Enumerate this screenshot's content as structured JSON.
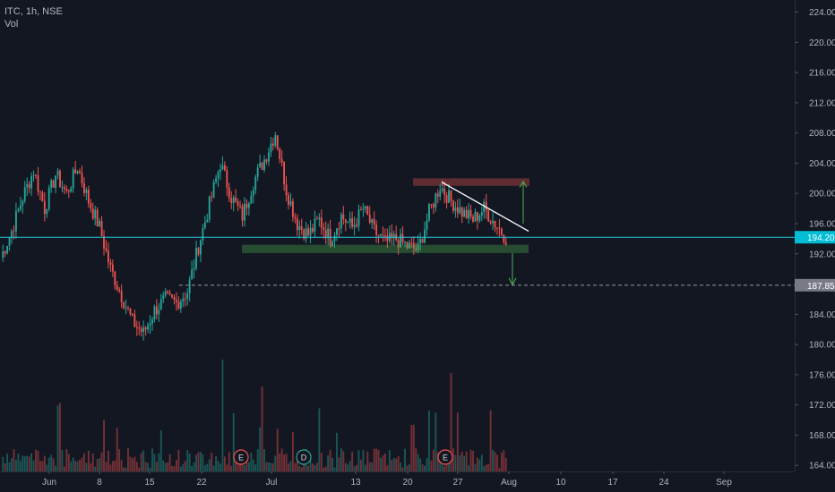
{
  "legend": {
    "symbol_line": "ITC, 1h, NSE",
    "volume_label": "Vol"
  },
  "chart_data": {
    "type": "candlestick",
    "symbol": "ITC",
    "interval": "1h",
    "exchange": "NSE",
    "ylim": [
      163.2,
      225.6
    ],
    "y_ticks": [
      "164.00",
      "168.00",
      "172.00",
      "176.00",
      "180.00",
      "184.00",
      "188.00",
      "192.00",
      "196.00",
      "200.00",
      "204.00",
      "208.00",
      "212.00",
      "216.00",
      "220.00",
      "224.00"
    ],
    "x_ticks": [
      "Jun",
      "8",
      "15",
      "22",
      "Jul",
      "13",
      "20",
      "27",
      "Aug",
      "10",
      "17",
      "24",
      "Sep"
    ],
    "series": [
      {
        "name": "price",
        "points": [
          [
            "Jun",
            191.5
          ],
          [
            "Jun",
            195.0
          ],
          [
            "Jun",
            199.5
          ],
          [
            "Jun",
            203.0
          ],
          [
            "8",
            198.0
          ],
          [
            "8",
            202.5
          ],
          [
            "8",
            200.0
          ],
          [
            "8",
            203.5
          ],
          [
            "8",
            199.0
          ],
          [
            "15",
            195.5
          ],
          [
            "15",
            190.0
          ],
          [
            "15",
            186.5
          ],
          [
            "15",
            183.0
          ],
          [
            "15",
            181.5
          ],
          [
            "22",
            184.5
          ],
          [
            "22",
            186.0
          ],
          [
            "22",
            185.5
          ],
          [
            "22",
            187.0
          ],
          [
            "22",
            193.0
          ],
          [
            "22",
            198.5
          ],
          [
            "Jul",
            204.0
          ],
          [
            "Jul",
            199.5
          ],
          [
            "Jul",
            197.0
          ],
          [
            "Jul",
            201.5
          ],
          [
            "Jul",
            204.5
          ],
          [
            "Jul",
            208.0
          ],
          [
            "13",
            200.5
          ],
          [
            "13",
            196.0
          ],
          [
            "13",
            194.5
          ],
          [
            "13",
            196.5
          ],
          [
            "13",
            194.0
          ],
          [
            "13",
            197.0
          ],
          [
            "13",
            195.5
          ],
          [
            "13",
            198.0
          ],
          [
            "13",
            195.0
          ],
          [
            "20",
            193.5
          ],
          [
            "20",
            194.0
          ],
          [
            "20",
            193.0
          ],
          [
            "20",
            192.5
          ],
          [
            "20",
            197.5
          ],
          [
            "27",
            201.0
          ],
          [
            "27",
            199.0
          ],
          [
            "27",
            197.5
          ],
          [
            "27",
            196.5
          ],
          [
            "27",
            198.0
          ],
          [
            "27",
            196.0
          ],
          [
            "Aug",
            194.2
          ]
        ]
      }
    ],
    "last_price": "194.20",
    "target_price": "187.85",
    "volume_events": [
      "E",
      "D",
      "E"
    ]
  }
}
